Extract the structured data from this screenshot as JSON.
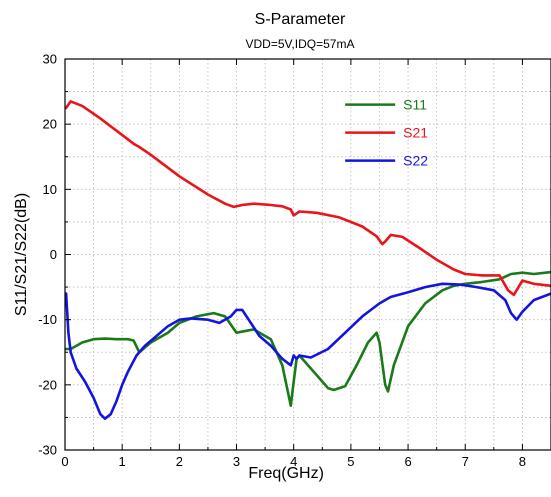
{
  "chart_data": {
    "type": "line",
    "title": "S-Parameter",
    "subtitle": "VDD=5V,IDQ=57mA",
    "xlabel": "Freq(GHz)",
    "ylabel": "S11/S21/S22(dB)",
    "xlim": [
      0,
      8.5
    ],
    "ylim": [
      -30,
      30
    ],
    "xticks": [
      0,
      1,
      2,
      3,
      4,
      5,
      6,
      7,
      8
    ],
    "yticks": [
      -30,
      -20,
      -10,
      0,
      10,
      20,
      30
    ],
    "grid": true,
    "legend_position": "top-right",
    "series": [
      {
        "name": "S11",
        "color": "#1a7a1a",
        "x": [
          0.02,
          0.1,
          0.3,
          0.5,
          0.7,
          0.9,
          1.1,
          1.2,
          1.3,
          1.5,
          1.8,
          2.0,
          2.3,
          2.6,
          2.8,
          3.0,
          3.3,
          3.6,
          3.8,
          3.95,
          4.0,
          4.05,
          4.1,
          4.3,
          4.6,
          4.7,
          4.9,
          5.1,
          5.3,
          5.45,
          5.5,
          5.6,
          5.65,
          5.75,
          6.0,
          6.3,
          6.6,
          6.8,
          7.0,
          7.3,
          7.6,
          7.8,
          8.0,
          8.2,
          8.5
        ],
        "values": [
          -14.5,
          -14.5,
          -13.5,
          -13.0,
          -12.9,
          -13.0,
          -13.0,
          -13.2,
          -15.0,
          -13.5,
          -12.0,
          -10.5,
          -9.5,
          -9.0,
          -9.5,
          -12.0,
          -11.5,
          -13.0,
          -17.0,
          -23.2,
          -19.5,
          -16.0,
          -15.5,
          -17.5,
          -20.5,
          -20.8,
          -20.2,
          -17.0,
          -13.5,
          -12.0,
          -13.5,
          -20.0,
          -21.0,
          -17.0,
          -11.0,
          -7.5,
          -5.5,
          -4.8,
          -4.5,
          -4.2,
          -3.8,
          -3.0,
          -2.8,
          -3.0,
          -2.7
        ]
      },
      {
        "name": "S21",
        "color": "#e8161a",
        "x": [
          0.02,
          0.1,
          0.3,
          0.6,
          0.9,
          1.2,
          1.3,
          1.5,
          2.0,
          2.5,
          2.8,
          2.95,
          3.1,
          3.3,
          3.6,
          3.8,
          3.95,
          4.0,
          4.1,
          4.4,
          4.8,
          5.2,
          5.45,
          5.55,
          5.6,
          5.7,
          5.9,
          6.2,
          6.5,
          6.8,
          7.0,
          7.3,
          7.6,
          7.75,
          7.85,
          8.0,
          8.2,
          8.5
        ],
        "values": [
          22.5,
          23.5,
          22.8,
          21.0,
          19.0,
          17.0,
          16.5,
          15.3,
          12.0,
          9.2,
          7.8,
          7.3,
          7.6,
          7.8,
          7.6,
          7.4,
          6.9,
          6.0,
          6.6,
          6.4,
          5.7,
          4.3,
          2.8,
          1.6,
          2.0,
          3.0,
          2.7,
          1.0,
          -0.8,
          -2.3,
          -3.0,
          -3.2,
          -3.2,
          -5.5,
          -6.2,
          -4.0,
          -4.5,
          -4.8
        ]
      },
      {
        "name": "S22",
        "color": "#1414e0",
        "x": [
          0.02,
          0.06,
          0.1,
          0.2,
          0.35,
          0.5,
          0.62,
          0.7,
          0.8,
          0.9,
          1.0,
          1.1,
          1.25,
          1.4,
          1.6,
          1.8,
          2.0,
          2.2,
          2.5,
          2.7,
          2.9,
          3.0,
          3.1,
          3.25,
          3.4,
          3.6,
          3.8,
          3.95,
          4.0,
          4.05,
          4.1,
          4.3,
          4.6,
          4.9,
          5.2,
          5.5,
          5.7,
          6.0,
          6.3,
          6.6,
          6.9,
          7.2,
          7.5,
          7.7,
          7.8,
          7.9,
          8.0,
          8.2,
          8.5
        ],
        "values": [
          -6.0,
          -12.0,
          -15.0,
          -17.5,
          -19.5,
          -22.0,
          -24.5,
          -25.2,
          -24.5,
          -22.5,
          -20.0,
          -18.0,
          -15.5,
          -14.0,
          -12.5,
          -11.0,
          -10.0,
          -9.8,
          -10.0,
          -10.5,
          -9.5,
          -8.5,
          -8.5,
          -10.5,
          -12.5,
          -14.0,
          -16.0,
          -17.0,
          -15.5,
          -16.0,
          -15.5,
          -15.8,
          -14.5,
          -12.0,
          -9.5,
          -7.5,
          -6.5,
          -5.8,
          -5.0,
          -4.5,
          -4.6,
          -5.0,
          -5.5,
          -7.0,
          -9.0,
          -10.0,
          -8.8,
          -7.0,
          -6.0
        ]
      }
    ]
  }
}
